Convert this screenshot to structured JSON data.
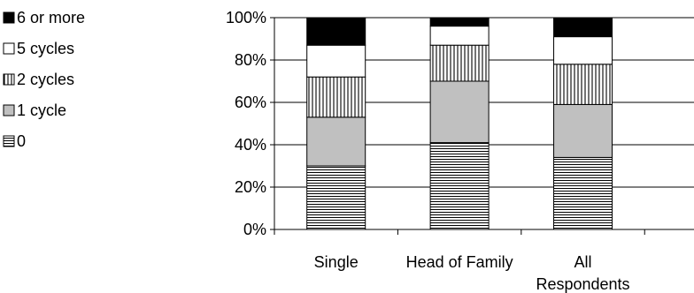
{
  "chart_data": {
    "type": "bar",
    "stacked": true,
    "categories": [
      "Single",
      "Head of Family",
      "All Respondents"
    ],
    "category_lines": [
      [
        "Single"
      ],
      [
        "Head of Family"
      ],
      [
        "All",
        "Respondents"
      ]
    ],
    "series": [
      {
        "name": "0",
        "values": [
          30,
          41,
          34
        ],
        "pattern": "hlines"
      },
      {
        "name": "1 cycle",
        "values": [
          23,
          29,
          25
        ],
        "pattern": "gray"
      },
      {
        "name": "2 cycles",
        "values": [
          19,
          17,
          19
        ],
        "pattern": "vlines"
      },
      {
        "name": "5 cycles",
        "values": [
          15,
          9,
          13
        ],
        "pattern": "white"
      },
      {
        "name": "6 or more",
        "values": [
          13,
          4,
          9
        ],
        "pattern": "black"
      }
    ],
    "legend_order": [
      "6 or more",
      "5 cycles",
      "2 cycles",
      "1 cycle",
      "0"
    ],
    "ylim": [
      0,
      100
    ],
    "yticks": [
      "0%",
      "20%",
      "40%",
      "60%",
      "80%",
      "100%"
    ],
    "grid": true,
    "legend_position": "left",
    "title": "",
    "xlabel": "",
    "ylabel": ""
  }
}
